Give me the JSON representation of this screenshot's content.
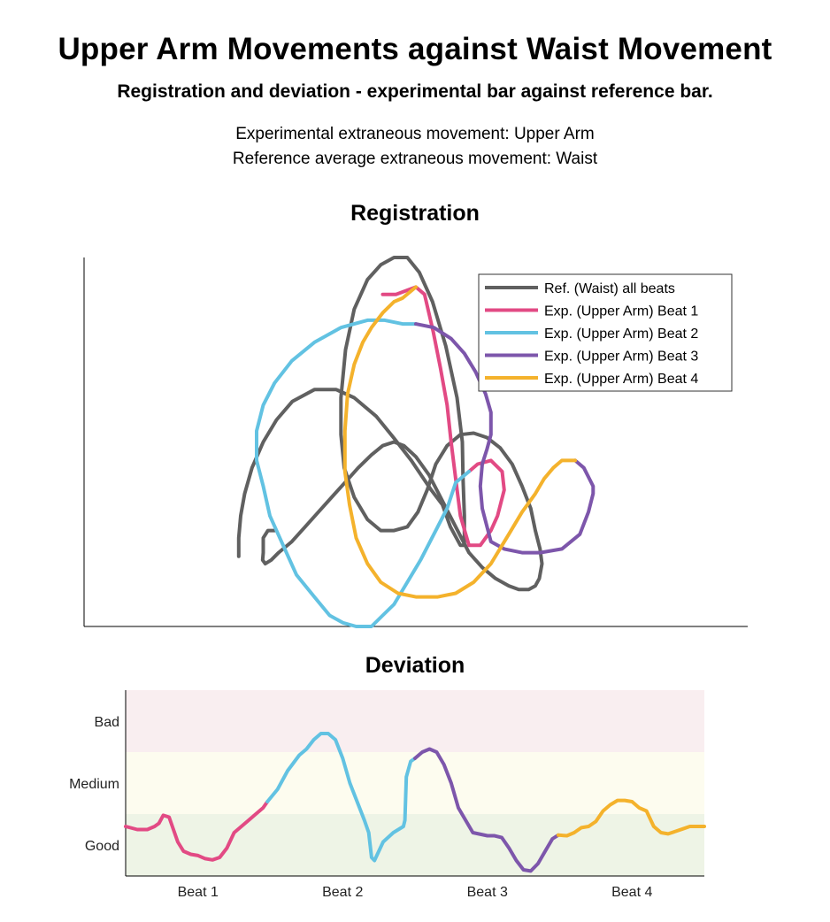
{
  "header": {
    "title": "Upper Arm Movements against Waist Movement",
    "subtitle": "Registration and deviation - experimental bar against reference bar.",
    "info_line1": "Experimental extraneous movement: Upper Arm",
    "info_line2": "Reference average extraneous movement: Waist"
  },
  "colors": {
    "reference": "#606060",
    "beat1": "#e24a84",
    "beat2": "#62c2e2",
    "beat3": "#7d56ab",
    "beat4": "#f4b22c",
    "band_bad": "#f9eef0",
    "band_medium": "#fdfcef",
    "band_good": "#eef4e6"
  },
  "chart_data": [
    {
      "type": "line",
      "title": "Registration",
      "xlabel": "",
      "ylabel": "",
      "axes": "left-bottom, no ticks",
      "legend": {
        "placement": "top-right",
        "entries": [
          "Ref. (Waist) all beats",
          "Exp. (Upper Arm) Beat 1",
          "Exp. (Upper Arm) Beat 2",
          "Exp. (Upper Arm) Beat 3",
          "Exp. (Upper Arm) Beat 4"
        ]
      },
      "xlim": [
        0,
        1
      ],
      "ylim": [
        0,
        1
      ],
      "series": [
        {
          "name": "Ref. (Waist) all beats",
          "x": [
            0.233,
            0.233,
            0.236,
            0.242,
            0.253,
            0.27,
            0.29,
            0.314,
            0.347,
            0.38,
            0.407,
            0.44,
            0.467,
            0.493,
            0.523,
            0.54,
            0.552,
            0.567,
            0.573,
            0.573,
            0.571,
            0.57,
            0.562,
            0.545,
            0.525,
            0.505,
            0.487,
            0.467,
            0.447,
            0.427,
            0.407,
            0.394,
            0.387,
            0.387,
            0.392,
            0.407,
            0.427,
            0.447,
            0.467,
            0.487,
            0.503,
            0.517,
            0.53,
            0.547,
            0.567,
            0.587,
            0.607,
            0.627,
            0.645,
            0.66,
            0.673,
            0.68,
            0.687,
            0.69,
            0.686,
            0.68,
            0.67,
            0.655,
            0.64,
            0.62,
            0.6,
            0.58,
            0.56,
            0.54,
            0.52,
            0.5,
            0.482,
            0.467,
            0.45,
            0.433,
            0.413,
            0.393,
            0.373,
            0.353,
            0.333,
            0.313,
            0.293,
            0.282,
            0.273,
            0.269,
            0.27,
            0.27,
            0.277,
            0.287
          ],
          "y": [
            0.19,
            0.24,
            0.3,
            0.36,
            0.43,
            0.5,
            0.56,
            0.61,
            0.642,
            0.642,
            0.62,
            0.57,
            0.51,
            0.45,
            0.37,
            0.33,
            0.27,
            0.22,
            0.22,
            0.3,
            0.4,
            0.5,
            0.62,
            0.76,
            0.88,
            0.96,
            1.0,
            1.0,
            0.98,
            0.94,
            0.86,
            0.75,
            0.62,
            0.52,
            0.43,
            0.35,
            0.29,
            0.26,
            0.26,
            0.27,
            0.31,
            0.37,
            0.44,
            0.49,
            0.52,
            0.524,
            0.512,
            0.484,
            0.44,
            0.38,
            0.32,
            0.26,
            0.21,
            0.17,
            0.13,
            0.11,
            0.1,
            0.1,
            0.11,
            0.13,
            0.16,
            0.2,
            0.27,
            0.34,
            0.41,
            0.46,
            0.49,
            0.5,
            0.49,
            0.465,
            0.43,
            0.39,
            0.35,
            0.31,
            0.27,
            0.23,
            0.2,
            0.18,
            0.17,
            0.18,
            0.2,
            0.24,
            0.26,
            0.26
          ]
        },
        {
          "name": "Exp. (Upper Arm) Beat 1",
          "x": [
            0.45,
            0.47,
            0.5,
            0.513,
            0.526,
            0.537,
            0.547,
            0.553,
            0.56,
            0.567,
            0.58,
            0.597,
            0.613,
            0.623,
            0.633,
            0.63,
            0.613,
            0.593,
            0.58
          ],
          "y": [
            0.9,
            0.9,
            0.92,
            0.9,
            0.8,
            0.7,
            0.6,
            0.5,
            0.4,
            0.3,
            0.22,
            0.22,
            0.26,
            0.3,
            0.37,
            0.42,
            0.45,
            0.44,
            0.42
          ],
          "segment": "first quarter"
        },
        {
          "name": "Exp. (Upper Arm) Beat 2",
          "x": [
            0.58,
            0.56,
            0.547,
            0.527,
            0.507,
            0.487,
            0.467,
            0.45,
            0.433,
            0.41,
            0.39,
            0.37,
            0.347,
            0.32,
            0.3,
            0.28,
            0.27,
            0.26,
            0.26,
            0.27,
            0.287,
            0.313,
            0.347,
            0.387,
            0.427,
            0.453,
            0.48,
            0.5
          ],
          "y": [
            0.42,
            0.39,
            0.32,
            0.25,
            0.18,
            0.12,
            0.06,
            0.03,
            0.0,
            0.0,
            0.01,
            0.03,
            0.08,
            0.14,
            0.22,
            0.3,
            0.38,
            0.45,
            0.53,
            0.6,
            0.66,
            0.72,
            0.77,
            0.81,
            0.83,
            0.83,
            0.82,
            0.82
          ],
          "segment": "second quarter"
        },
        {
          "name": "Exp. (Upper Arm) Beat 3",
          "x": [
            0.5,
            0.527,
            0.553,
            0.573,
            0.59,
            0.605,
            0.613,
            0.613,
            0.607,
            0.6,
            0.597,
            0.6,
            0.613,
            0.633,
            0.66,
            0.687,
            0.72,
            0.747,
            0.76,
            0.767,
            0.767,
            0.753,
            0.74
          ],
          "y": [
            0.82,
            0.81,
            0.78,
            0.74,
            0.69,
            0.63,
            0.58,
            0.52,
            0.48,
            0.44,
            0.38,
            0.32,
            0.23,
            0.21,
            0.2,
            0.2,
            0.21,
            0.25,
            0.31,
            0.36,
            0.38,
            0.43,
            0.45
          ],
          "segment": "third quarter"
        },
        {
          "name": "Exp. (Upper Arm) Beat 4",
          "x": [
            0.74,
            0.72,
            0.707,
            0.693,
            0.68,
            0.66,
            0.64,
            0.613,
            0.587,
            0.56,
            0.533,
            0.5,
            0.473,
            0.447,
            0.427,
            0.41,
            0.4,
            0.393,
            0.393,
            0.397,
            0.407,
            0.42,
            0.433,
            0.45,
            0.467,
            0.48,
            0.5
          ],
          "y": [
            0.45,
            0.45,
            0.43,
            0.4,
            0.36,
            0.31,
            0.25,
            0.17,
            0.12,
            0.09,
            0.08,
            0.08,
            0.09,
            0.12,
            0.17,
            0.24,
            0.33,
            0.42,
            0.53,
            0.63,
            0.71,
            0.77,
            0.81,
            0.85,
            0.88,
            0.89,
            0.92
          ],
          "segment": "fourth quarter"
        }
      ]
    },
    {
      "type": "line",
      "title": "Deviation",
      "xlabel": "",
      "ylabel": "",
      "x_tick_labels": [
        "Beat 1",
        "Beat 2",
        "Beat 3",
        "Beat 4"
      ],
      "y_tick_labels": [
        "Good",
        "Medium",
        "Bad"
      ],
      "bands": [
        "Good",
        "Medium",
        "Bad"
      ],
      "xlim": [
        0,
        4
      ],
      "ylim": [
        0,
        3
      ],
      "series": [
        {
          "name": "Beat 1",
          "x": [
            0.0,
            0.08,
            0.15,
            0.2,
            0.23,
            0.26,
            0.3,
            0.33,
            0.36,
            0.4,
            0.45,
            0.5,
            0.55,
            0.6,
            0.65,
            0.7,
            0.75,
            0.8,
            0.85,
            0.9,
            0.95,
            0.98
          ],
          "y": [
            0.8,
            0.75,
            0.75,
            0.8,
            0.85,
            0.98,
            0.95,
            0.75,
            0.55,
            0.4,
            0.35,
            0.33,
            0.28,
            0.26,
            0.3,
            0.45,
            0.7,
            0.8,
            0.9,
            1.0,
            1.1,
            1.2
          ]
        },
        {
          "name": "Beat 2",
          "x": [
            0.98,
            1.05,
            1.12,
            1.2,
            1.25,
            1.3,
            1.35,
            1.4,
            1.45,
            1.5,
            1.55,
            1.6,
            1.65,
            1.68,
            1.69,
            1.7,
            1.72,
            1.78,
            1.85,
            1.92,
            1.93,
            1.94,
            1.97,
            2.0
          ],
          "y": [
            1.2,
            1.4,
            1.7,
            1.95,
            2.05,
            2.2,
            2.3,
            2.3,
            2.2,
            1.9,
            1.5,
            1.2,
            0.9,
            0.7,
            0.5,
            0.3,
            0.25,
            0.55,
            0.7,
            0.8,
            0.9,
            1.6,
            1.85,
            1.9
          ]
        },
        {
          "name": "Beat 3",
          "x": [
            2.0,
            2.05,
            2.1,
            2.15,
            2.2,
            2.25,
            2.3,
            2.4,
            2.5,
            2.55,
            2.6,
            2.65,
            2.7,
            2.75,
            2.8,
            2.85,
            2.9,
            2.95,
            2.99
          ],
          "y": [
            1.9,
            2.0,
            2.05,
            2.0,
            1.8,
            1.5,
            1.1,
            0.7,
            0.65,
            0.65,
            0.62,
            0.45,
            0.25,
            0.1,
            0.08,
            0.2,
            0.4,
            0.6,
            0.66
          ]
        },
        {
          "name": "Beat 4",
          "x": [
            2.99,
            3.05,
            3.1,
            3.15,
            3.2,
            3.25,
            3.3,
            3.35,
            3.4,
            3.45,
            3.5,
            3.55,
            3.6,
            3.65,
            3.7,
            3.75,
            3.8,
            3.85,
            3.9,
            3.95,
            4.0
          ],
          "y": [
            0.66,
            0.65,
            0.7,
            0.78,
            0.8,
            0.88,
            1.05,
            1.15,
            1.22,
            1.22,
            1.2,
            1.1,
            1.05,
            0.8,
            0.7,
            0.68,
            0.72,
            0.76,
            0.8,
            0.8,
            0.8
          ]
        }
      ]
    }
  ]
}
